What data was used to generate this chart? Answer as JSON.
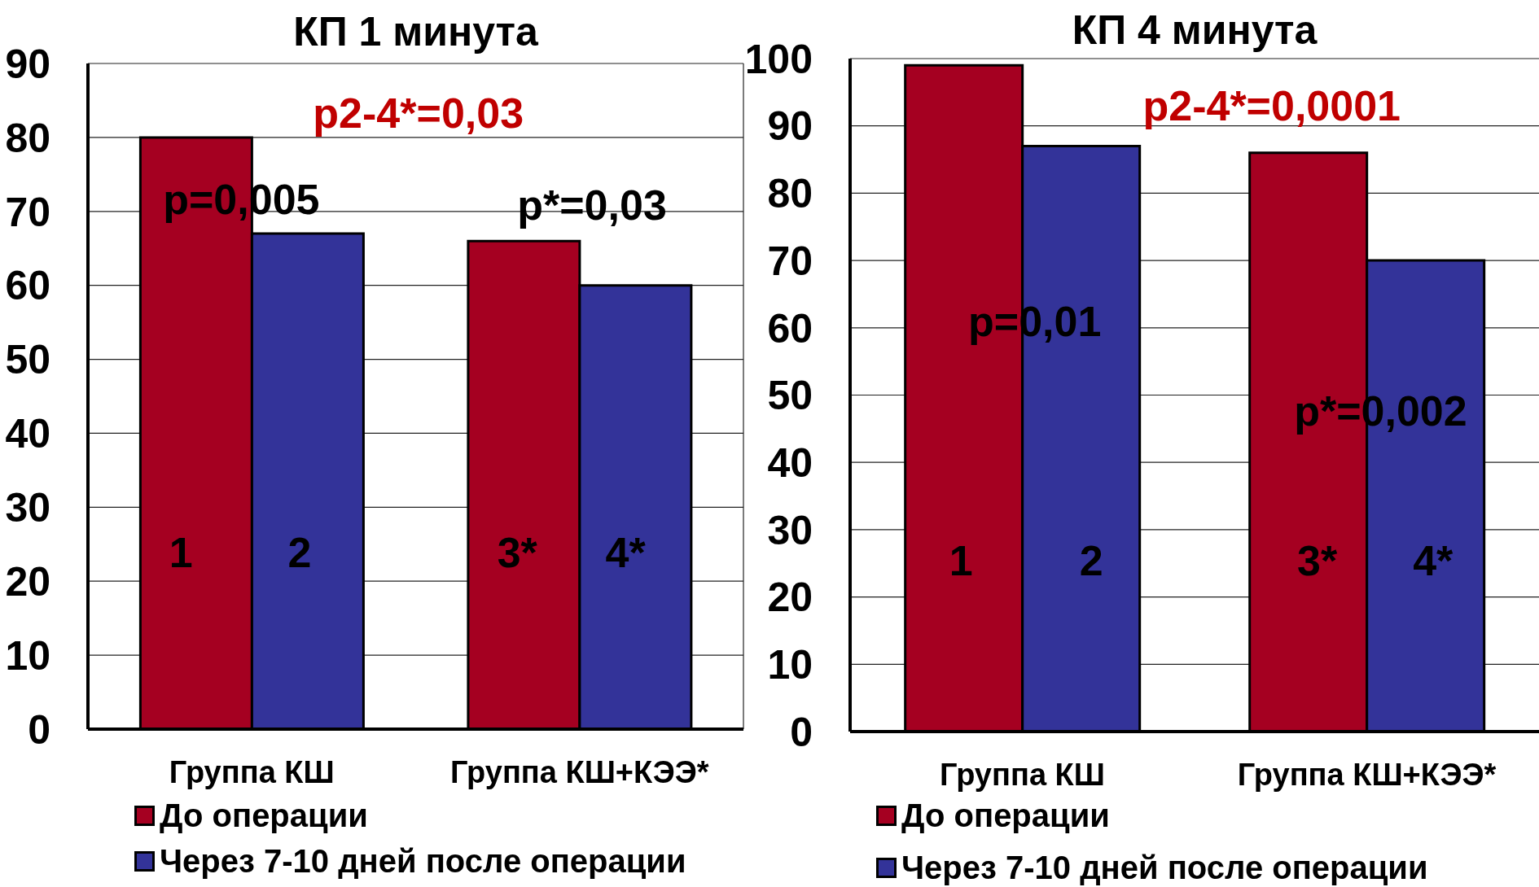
{
  "chart_data": [
    {
      "type": "bar",
      "title": "КП 1 минута",
      "categories": [
        "Группа КШ",
        "Группа КШ+КЭЭ*"
      ],
      "series": [
        {
          "name": "До операции",
          "color": "#a50021",
          "values": [
            80,
            66
          ]
        },
        {
          "name": "Через 7-10 дней после операции",
          "color": "#333399",
          "values": [
            67,
            60
          ]
        }
      ],
      "ylim": [
        0,
        90
      ],
      "yticks": [
        0,
        10,
        20,
        30,
        40,
        50,
        60,
        70,
        80,
        90
      ],
      "grid": "y",
      "legend": "bottom",
      "annotations": [
        "p2-4*=0,03",
        "p=0,005",
        "p*=0,03",
        "1",
        "2",
        "3*",
        "4*"
      ]
    },
    {
      "type": "bar",
      "title": "КП 4 минута",
      "categories": [
        "Группа КШ",
        "Группа КШ+КЭЭ*"
      ],
      "series": [
        {
          "name": "До операции",
          "color": "#a50021",
          "values": [
            99,
            86
          ]
        },
        {
          "name": "Через 7-10 дней после операции",
          "color": "#333399",
          "values": [
            87,
            70
          ]
        }
      ],
      "ylim": [
        0,
        100
      ],
      "yticks": [
        0,
        10,
        20,
        30,
        40,
        50,
        60,
        70,
        80,
        90,
        100
      ],
      "grid": "y",
      "legend": "bottom",
      "annotations": [
        "p2-4*=0,0001",
        "p=0,01",
        "p*=0,002",
        "1",
        "2",
        "3*",
        "4*"
      ]
    }
  ]
}
